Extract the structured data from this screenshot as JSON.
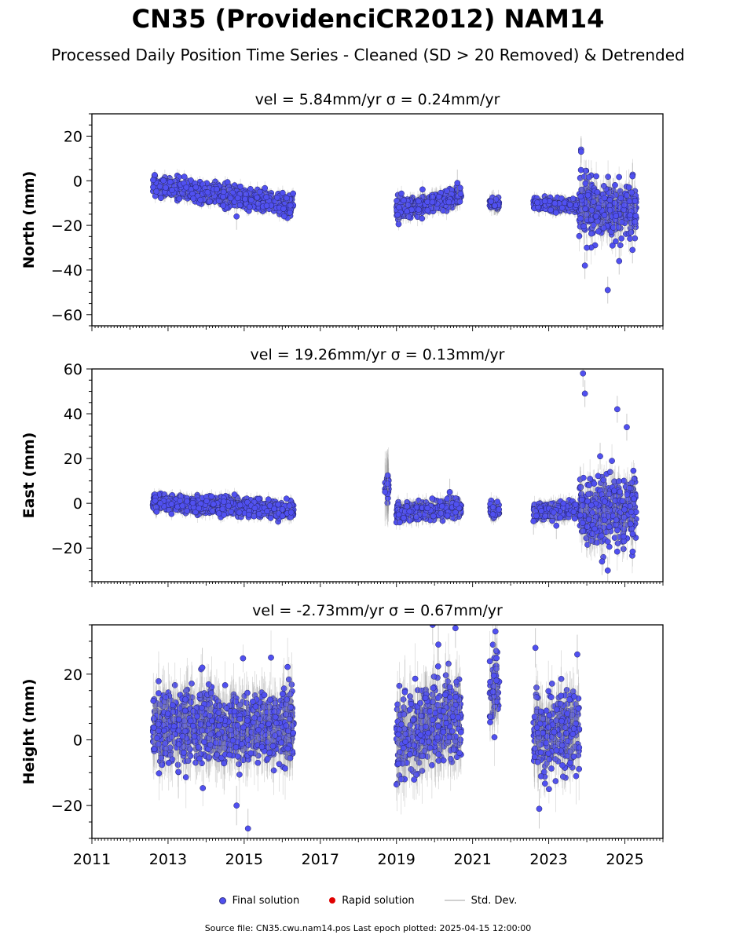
{
  "title": "CN35 (ProvidenciCR2012) NAM14",
  "subtitle": "Processed Daily Position Time Series - Cleaned (SD > 20 Removed) & Detrended",
  "legend": {
    "final_label": "Final solution",
    "rapid_label": "Rapid solution",
    "sd_label": "Std. Dev."
  },
  "source": "Source file: CN35.cwu.nam14.pos  Last epoch plotted: 2025-04-15 12:00:00",
  "colors": {
    "final": "#5050f0",
    "final_edge": "#202060",
    "rapid": "#e00000",
    "sd": "#999999"
  },
  "chart_data": [
    {
      "type": "scatter",
      "title": "vel = 5.84mm/yr   σ = 0.24mm/yr",
      "ylabel": "North (mm)",
      "xlim": [
        2011,
        2026
      ],
      "ylim": [
        -65,
        30
      ],
      "yticks": [
        20,
        0,
        -20,
        -40,
        -60
      ],
      "ytick_labels": [
        "20",
        "0",
        "−20",
        "−40",
        "−60"
      ],
      "series": [
        {
          "name": "Final solution",
          "segments": [
            {
              "x0": 2012.6,
              "x1": 2016.3,
              "y0": -2,
              "y1": -11,
              "spread": 2.2,
              "err": 2.5
            },
            {
              "x0": 2019.0,
              "x1": 2020.7,
              "y0": -13,
              "y1": -7,
              "spread": 2.0,
              "err": 3.0
            },
            {
              "x0": 2021.45,
              "x1": 2021.7,
              "y0": -10,
              "y1": -10,
              "spread": 1.5,
              "err": 3.0
            },
            {
              "x0": 2022.6,
              "x1": 2023.8,
              "y0": -10,
              "y1": -12,
              "spread": 1.3,
              "err": 2.5
            },
            {
              "x0": 2023.8,
              "x1": 2025.3,
              "y0": -13,
              "y1": -13,
              "spread": 6.0,
              "err": 6.0
            }
          ],
          "outliers": [
            [
              2023.85,
              14
            ],
            [
              2023.85,
              13
            ],
            [
              2023.95,
              -38
            ],
            [
              2024.0,
              -30
            ],
            [
              2024.55,
              -49
            ],
            [
              2024.85,
              -36
            ],
            [
              2025.2,
              2
            ],
            [
              2025.2,
              -31
            ],
            [
              2014.8,
              -16
            ],
            [
              2020.6,
              -1
            ]
          ]
        }
      ]
    },
    {
      "type": "scatter",
      "title": "vel = 19.26mm/yr   σ = 0.13mm/yr",
      "ylabel": "East (mm)",
      "xlim": [
        2011,
        2026
      ],
      "ylim": [
        -35,
        60
      ],
      "yticks": [
        60,
        40,
        20,
        0,
        -20
      ],
      "ytick_labels": [
        "60",
        "40",
        "20",
        "0",
        "−20"
      ],
      "series": [
        {
          "name": "Final solution",
          "segments": [
            {
              "x0": 2012.6,
              "x1": 2016.3,
              "y0": 0.5,
              "y1": -3,
              "spread": 1.8,
              "err": 2.5
            },
            {
              "x0": 2018.7,
              "x1": 2018.8,
              "y0": 6,
              "y1": 6,
              "spread": 2.5,
              "err": 12
            },
            {
              "x0": 2019.0,
              "x1": 2020.7,
              "y0": -4,
              "y1": -2,
              "spread": 1.8,
              "err": 3.0
            },
            {
              "x0": 2021.45,
              "x1": 2021.7,
              "y0": -3,
              "y1": -3,
              "spread": 1.5,
              "err": 3.0
            },
            {
              "x0": 2022.6,
              "x1": 2023.8,
              "y0": -4,
              "y1": -3,
              "spread": 1.6,
              "err": 3.0
            },
            {
              "x0": 2023.8,
              "x1": 2025.3,
              "y0": -3,
              "y1": -3,
              "spread": 7.0,
              "err": 7.0
            }
          ],
          "outliers": [
            [
              2023.9,
              58
            ],
            [
              2023.95,
              49
            ],
            [
              2024.8,
              42
            ],
            [
              2025.05,
              34
            ],
            [
              2024.35,
              21
            ],
            [
              2024.55,
              -30
            ],
            [
              2024.4,
              -26
            ],
            [
              2020.4,
              5
            ],
            [
              2022.6,
              -8
            ],
            [
              2023.2,
              -10
            ]
          ]
        }
      ]
    },
    {
      "type": "scatter",
      "title": "vel = -2.73mm/yr   σ = 0.67mm/yr",
      "ylabel": "Height (mm)",
      "xlim": [
        2011,
        2026
      ],
      "ylim": [
        -30,
        35
      ],
      "yticks": [
        20,
        0,
        -20
      ],
      "ytick_labels": [
        "20",
        "0",
        "−20"
      ],
      "xticks": [
        2011,
        2013,
        2015,
        2017,
        2019,
        2021,
        2023,
        2025
      ],
      "xtick_labels": [
        "2011",
        "2013",
        "2015",
        "2017",
        "2019",
        "2021",
        "2023",
        "2025"
      ],
      "series": [
        {
          "name": "Final solution",
          "segments": [
            {
              "x0": 2012.6,
              "x1": 2016.3,
              "y0": 4,
              "y1": 4,
              "spread": 5.5,
              "err": 7
            },
            {
              "x0": 2019.0,
              "x1": 2020.7,
              "y0": 0,
              "y1": 8,
              "spread": 6.0,
              "err": 8
            },
            {
              "x0": 2021.45,
              "x1": 2021.7,
              "y0": 15,
              "y1": 15,
              "spread": 5.0,
              "err": 7
            },
            {
              "x0": 2022.6,
              "x1": 2023.8,
              "y0": 1,
              "y1": 2,
              "spread": 6.0,
              "err": 7
            }
          ],
          "outliers": [
            [
              2015.1,
              -27
            ],
            [
              2013.9,
              22
            ],
            [
              2014.8,
              -20
            ],
            [
              2019.95,
              35
            ],
            [
              2020.55,
              34
            ],
            [
              2021.6,
              33
            ],
            [
              2020.1,
              29
            ],
            [
              2022.65,
              28
            ],
            [
              2023.75,
              26
            ],
            [
              2022.75,
              -21
            ]
          ]
        }
      ]
    }
  ]
}
